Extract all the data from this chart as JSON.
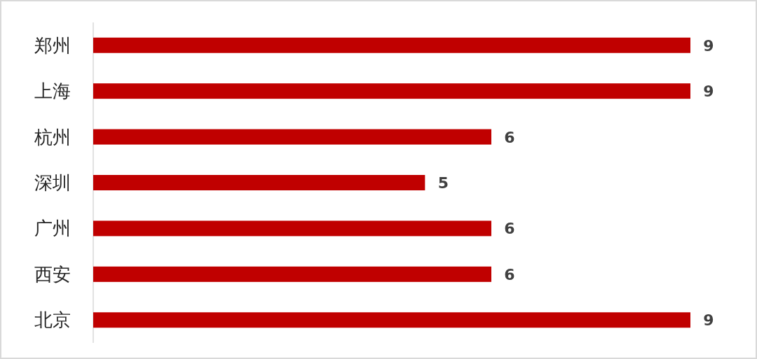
{
  "chart_data": {
    "type": "bar",
    "orientation": "horizontal",
    "categories": [
      "郑州",
      "上海",
      "杭州",
      "深圳",
      "广州",
      "西安",
      "北京"
    ],
    "values": [
      9,
      9,
      6,
      5,
      6,
      6,
      9
    ],
    "color": "#c00000",
    "data_labels": true
  }
}
